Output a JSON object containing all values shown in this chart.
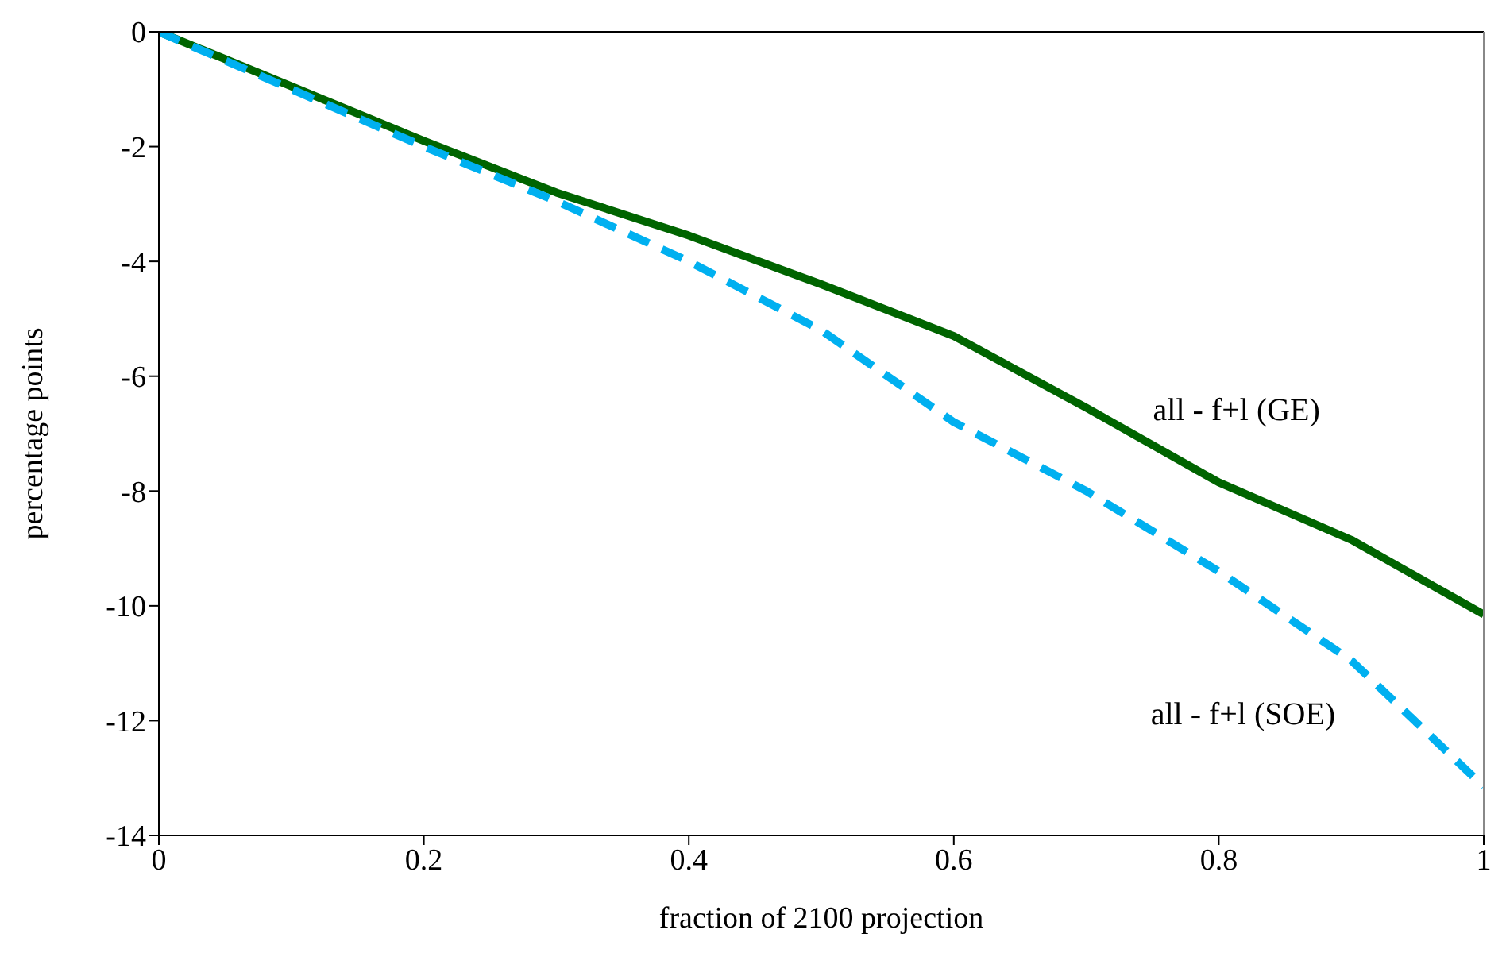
{
  "chart_data": {
    "type": "line",
    "xlabel": "fraction of 2100 projection",
    "ylabel": "percentage points",
    "x": [
      0,
      0.1,
      0.2,
      0.3,
      0.4,
      0.5,
      0.6,
      0.7,
      0.8,
      0.9,
      1
    ],
    "series": [
      {
        "name": "all - f+l (GE)",
        "color": "#006400",
        "line_style": "solid",
        "values": [
          0,
          -0.95,
          -1.9,
          -2.8,
          -3.55,
          -4.4,
          -5.3,
          -6.55,
          -7.85,
          -8.85,
          -10.15
        ]
      },
      {
        "name": "all - f+l (SOE)",
        "color": "#00b0f0",
        "line_style": "dashed",
        "values": [
          0,
          -1.0,
          -2.0,
          -2.95,
          -4.0,
          -5.2,
          -6.8,
          -8.0,
          -9.4,
          -10.95,
          -13.15
        ]
      }
    ],
    "xlim": [
      0,
      1
    ],
    "xticks": [
      0,
      0.2,
      0.4,
      0.6,
      0.8,
      1
    ],
    "ylim": [
      -14,
      0
    ],
    "yticks": [
      -14,
      -12,
      -10,
      -8,
      -6,
      -4,
      -2,
      0
    ],
    "marker": "none"
  }
}
